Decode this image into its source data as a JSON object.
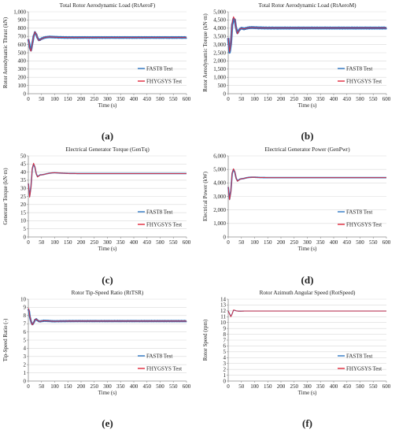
{
  "figure": {
    "colors": {
      "fast8": "#2e78c4",
      "fhygsys": "#e0283a",
      "grid": "#d9d9d9",
      "axis": "#8c8c8c",
      "text": "#222222"
    },
    "panels": [
      {
        "label": "(a)"
      },
      {
        "label": "(b)"
      },
      {
        "label": "(c)"
      },
      {
        "label": "(d)"
      },
      {
        "label": "(e)"
      },
      {
        "label": "(f)"
      }
    ]
  },
  "chart_data": [
    {
      "type": "line",
      "title": "Total Rotor Aerodynamic Load (RtAeroF)",
      "xlabel": "Time (s)",
      "ylabel": "Rotor Aerodynamic Thrust (kN)",
      "xlim": [
        0,
        600
      ],
      "ylim": [
        0,
        1000
      ],
      "xticks": [
        0,
        50,
        100,
        150,
        200,
        250,
        300,
        350,
        400,
        450,
        500,
        550,
        600
      ],
      "yticks": [
        0,
        100,
        200,
        300,
        400,
        500,
        600,
        700,
        800,
        900,
        1000
      ],
      "ytick_labels": [
        "0",
        "100",
        "200",
        "300",
        "400",
        "500",
        "600",
        "700",
        "800",
        "900",
        "1,000"
      ],
      "grid": "horizontal",
      "legend": "bottom-right",
      "series": [
        {
          "name": "FAST8 Test",
          "width": 2.6,
          "amp": 4,
          "x": [
            0,
            3,
            6,
            10,
            15,
            20,
            25,
            30,
            35,
            40,
            45,
            50,
            60,
            70,
            80,
            90,
            100,
            120,
            150,
            200,
            300,
            400,
            500,
            600
          ],
          "y": [
            665,
            620,
            560,
            525,
            610,
            700,
            748,
            725,
            680,
            655,
            660,
            672,
            684,
            690,
            693,
            692,
            690,
            688,
            686,
            686,
            686,
            686,
            686,
            686
          ]
        },
        {
          "name": "FHYGSYS Test",
          "width": 0.9,
          "amp": 0,
          "x": [
            0,
            3,
            6,
            10,
            15,
            20,
            25,
            30,
            35,
            40,
            45,
            50,
            60,
            70,
            80,
            90,
            100,
            120,
            150,
            200,
            300,
            400,
            500,
            600
          ],
          "y": [
            665,
            615,
            550,
            518,
            605,
            705,
            755,
            728,
            678,
            650,
            656,
            670,
            684,
            691,
            694,
            692,
            690,
            688,
            686,
            686,
            686,
            686,
            686,
            686
          ]
        }
      ]
    },
    {
      "type": "line",
      "title": "Total Rotor Aerodynamic Load (RtAeroM)",
      "xlabel": "Time (s)",
      "ylabel": "Rotor Aerodynamic Torque (kN·m)",
      "xlim": [
        0,
        600
      ],
      "ylim": [
        0,
        5000
      ],
      "xticks": [
        0,
        50,
        100,
        150,
        200,
        250,
        300,
        350,
        400,
        450,
        500,
        550,
        600
      ],
      "yticks": [
        0,
        500,
        1000,
        1500,
        2000,
        2500,
        3000,
        3500,
        4000,
        4500,
        5000
      ],
      "ytick_labels": [
        "0",
        "500",
        "1,000",
        "1,500",
        "2,000",
        "2,500",
        "3,000",
        "3,500",
        "4,000",
        "4,500",
        "5,000"
      ],
      "grid": "horizontal",
      "legend": "bottom-right",
      "series": [
        {
          "name": "FAST8 Test",
          "width": 2.8,
          "amp": 25,
          "x": [
            0,
            5,
            10,
            15,
            20,
            25,
            30,
            35,
            40,
            45,
            50,
            60,
            70,
            80,
            90,
            100,
            120,
            150,
            200,
            300,
            400,
            500,
            600
          ],
          "y": [
            3400,
            2500,
            3000,
            4200,
            4550,
            4500,
            4000,
            3700,
            3850,
            3950,
            4000,
            3960,
            4000,
            4030,
            4040,
            4030,
            4020,
            4010,
            4010,
            4010,
            4010,
            4010,
            4010
          ]
        },
        {
          "name": "FHYGSYS Test",
          "width": 0.9,
          "amp": 0,
          "x": [
            0,
            5,
            10,
            15,
            20,
            25,
            30,
            35,
            40,
            45,
            50,
            60,
            70,
            80,
            90,
            100,
            120,
            150,
            200,
            300,
            400,
            500,
            600
          ],
          "y": [
            3400,
            2550,
            3050,
            4300,
            4700,
            4550,
            4000,
            3650,
            3820,
            3950,
            4000,
            3950,
            4000,
            4030,
            4040,
            4030,
            4020,
            4010,
            4010,
            4010,
            4010,
            4010,
            4010
          ]
        }
      ]
    },
    {
      "type": "line",
      "title": "Electrical Generator Torque (GenTq)",
      "xlabel": "Time (s)",
      "ylabel": "Generator Torque (kN·m)",
      "xlim": [
        0,
        600
      ],
      "ylim": [
        0,
        50
      ],
      "xticks": [
        0,
        50,
        100,
        150,
        200,
        250,
        300,
        350,
        400,
        450,
        500,
        550,
        600
      ],
      "yticks": [
        0,
        5,
        10,
        15,
        20,
        25,
        30,
        35,
        40,
        45,
        50
      ],
      "ytick_labels": [
        "0",
        "5",
        "10",
        "15",
        "20",
        "25",
        "30",
        "35",
        "40",
        "45",
        "50"
      ],
      "grid": "horizontal",
      "legend": "bottom-right",
      "series": [
        {
          "name": "FAST8 Test",
          "width": 1.6,
          "amp": 0,
          "x": [
            0,
            5,
            10,
            15,
            20,
            25,
            30,
            35,
            40,
            45,
            50,
            60,
            70,
            80,
            90,
            100,
            120,
            150,
            200,
            300,
            400,
            500,
            600
          ],
          "y": [
            33,
            25,
            31,
            42,
            45,
            43,
            39,
            37.2,
            37.8,
            38.3,
            38.3,
            38.6,
            39,
            39.3,
            39.5,
            39.6,
            39.4,
            39.2,
            39.1,
            39.1,
            39.1,
            39.1,
            39.1
          ]
        },
        {
          "name": "FHYGSYS Test",
          "width": 0.9,
          "amp": 0,
          "x": [
            0,
            5,
            10,
            15,
            20,
            25,
            30,
            35,
            40,
            45,
            50,
            60,
            70,
            80,
            90,
            100,
            120,
            150,
            200,
            300,
            400,
            500,
            600
          ],
          "y": [
            33,
            24.5,
            30.5,
            42.5,
            45.5,
            43.2,
            39,
            37,
            37.6,
            38.2,
            38.3,
            38.6,
            39,
            39.3,
            39.5,
            39.6,
            39.4,
            39.2,
            39.1,
            39.1,
            39.1,
            39.1,
            39.1
          ]
        }
      ]
    },
    {
      "type": "line",
      "title": "Electrical Generator Power (GenPwr)",
      "xlabel": "Time (s)",
      "ylabel": "Electrical Power (kW)",
      "xlim": [
        0,
        600
      ],
      "ylim": [
        0,
        6000
      ],
      "xticks": [
        0,
        50,
        100,
        150,
        200,
        250,
        300,
        350,
        400,
        450,
        500,
        550,
        600
      ],
      "yticks": [
        0,
        1000,
        2000,
        3000,
        4000,
        5000,
        6000
      ],
      "ytick_labels": [
        "0",
        "1,000",
        "2,000",
        "3,000",
        "4,000",
        "5,000",
        "6,000"
      ],
      "grid": "horizontal",
      "legend": "bottom-right",
      "series": [
        {
          "name": "FAST8 Test",
          "width": 1.8,
          "amp": 0,
          "x": [
            0,
            5,
            10,
            15,
            20,
            25,
            30,
            35,
            40,
            45,
            50,
            60,
            70,
            80,
            90,
            100,
            120,
            150,
            200,
            300,
            400,
            500,
            600
          ],
          "y": [
            3700,
            2800,
            3400,
            4700,
            5000,
            4800,
            4350,
            4150,
            4220,
            4280,
            4300,
            4330,
            4380,
            4410,
            4420,
            4420,
            4400,
            4390,
            4390,
            4390,
            4390,
            4390,
            4390
          ]
        },
        {
          "name": "FHYGSYS Test",
          "width": 0.9,
          "amp": 0,
          "x": [
            0,
            5,
            10,
            15,
            20,
            25,
            30,
            35,
            40,
            45,
            50,
            60,
            70,
            80,
            90,
            100,
            120,
            150,
            200,
            300,
            400,
            500,
            600
          ],
          "y": [
            3700,
            2750,
            3350,
            4750,
            5050,
            4820,
            4350,
            4120,
            4200,
            4270,
            4300,
            4330,
            4380,
            4410,
            4420,
            4420,
            4400,
            4390,
            4390,
            4390,
            4390,
            4390,
            4390
          ]
        }
      ]
    },
    {
      "type": "line",
      "title": "Rotor Tip-Speed Ratio (RtTSR)",
      "xlabel": "Time (s)",
      "ylabel": "Tip-Speed Ratio (-)",
      "xlim": [
        0,
        600
      ],
      "ylim": [
        0,
        10
      ],
      "xticks": [
        0,
        50,
        100,
        150,
        200,
        250,
        300,
        350,
        400,
        450,
        500,
        550,
        600
      ],
      "yticks": [
        0,
        1,
        2,
        3,
        4,
        5,
        6,
        7,
        8,
        9,
        10
      ],
      "ytick_labels": [
        "0",
        "1",
        "2",
        "3",
        "4",
        "5",
        "6",
        "7",
        "8",
        "9",
        "10"
      ],
      "grid": "horizontal",
      "legend": "bottom-right",
      "series": [
        {
          "name": "FAST8 Test",
          "width": 2.4,
          "amp": 0.03,
          "x": [
            0,
            3,
            6,
            10,
            15,
            20,
            25,
            30,
            35,
            40,
            45,
            50,
            60,
            70,
            80,
            90,
            100,
            120,
            150,
            200,
            300,
            400,
            500,
            600
          ],
          "y": [
            8.8,
            8.5,
            7.8,
            7.3,
            6.9,
            7.1,
            7.45,
            7.55,
            7.4,
            7.3,
            7.28,
            7.32,
            7.36,
            7.35,
            7.33,
            7.31,
            7.3,
            7.31,
            7.32,
            7.32,
            7.32,
            7.32,
            7.32,
            7.32
          ]
        },
        {
          "name": "FHYGSYS Test",
          "width": 0.9,
          "amp": 0,
          "x": [
            0,
            3,
            6,
            10,
            15,
            20,
            25,
            30,
            35,
            40,
            45,
            50,
            60,
            70,
            80,
            90,
            100,
            120,
            150,
            200,
            300,
            400,
            500,
            600
          ],
          "y": [
            8.9,
            8.55,
            7.85,
            7.3,
            6.85,
            7.1,
            7.48,
            7.58,
            7.42,
            7.3,
            7.27,
            7.32,
            7.36,
            7.35,
            7.33,
            7.31,
            7.3,
            7.31,
            7.32,
            7.32,
            7.32,
            7.32,
            7.32,
            7.32
          ]
        }
      ]
    },
    {
      "type": "line",
      "title": "Rotor Azimuth Angular Speed (RotSpeed)",
      "xlabel": "Time (s)",
      "ylabel": "Rotor Speed (rpm)",
      "xlim": [
        0,
        600
      ],
      "ylim": [
        0,
        14
      ],
      "xticks": [
        0,
        50,
        100,
        150,
        200,
        250,
        300,
        350,
        400,
        450,
        500,
        550,
        600
      ],
      "yticks": [
        0,
        1,
        2,
        3,
        4,
        5,
        6,
        7,
        8,
        9,
        10,
        11,
        12,
        13,
        14
      ],
      "ytick_labels": [
        "0",
        "1",
        "2",
        "3",
        "4",
        "5",
        "6",
        "7",
        "8",
        "9",
        "10",
        "11",
        "12",
        "13",
        "14"
      ],
      "grid": "horizontal",
      "legend": "bottom-right",
      "series": [
        {
          "name": "FAST8 Test",
          "width": 1.2,
          "amp": 0,
          "x": [
            0,
            5,
            10,
            15,
            20,
            25,
            30,
            40,
            50,
            60,
            80,
            100,
            150,
            200,
            300,
            400,
            500,
            600
          ],
          "y": [
            12,
            11.5,
            11.05,
            11.5,
            12.1,
            12.1,
            12,
            11.95,
            11.95,
            11.97,
            11.97,
            11.97,
            11.97,
            11.97,
            11.97,
            11.97,
            11.97,
            11.97
          ]
        },
        {
          "name": "FHYGSYS Test",
          "width": 0.9,
          "amp": 0,
          "x": [
            0,
            5,
            10,
            15,
            20,
            25,
            30,
            40,
            50,
            60,
            80,
            100,
            150,
            200,
            300,
            400,
            500,
            600
          ],
          "y": [
            12,
            11.45,
            11.0,
            11.5,
            12.15,
            12.1,
            12,
            11.95,
            11.95,
            11.97,
            11.97,
            11.97,
            11.97,
            11.97,
            11.97,
            11.97,
            11.97,
            11.97
          ]
        }
      ]
    }
  ]
}
